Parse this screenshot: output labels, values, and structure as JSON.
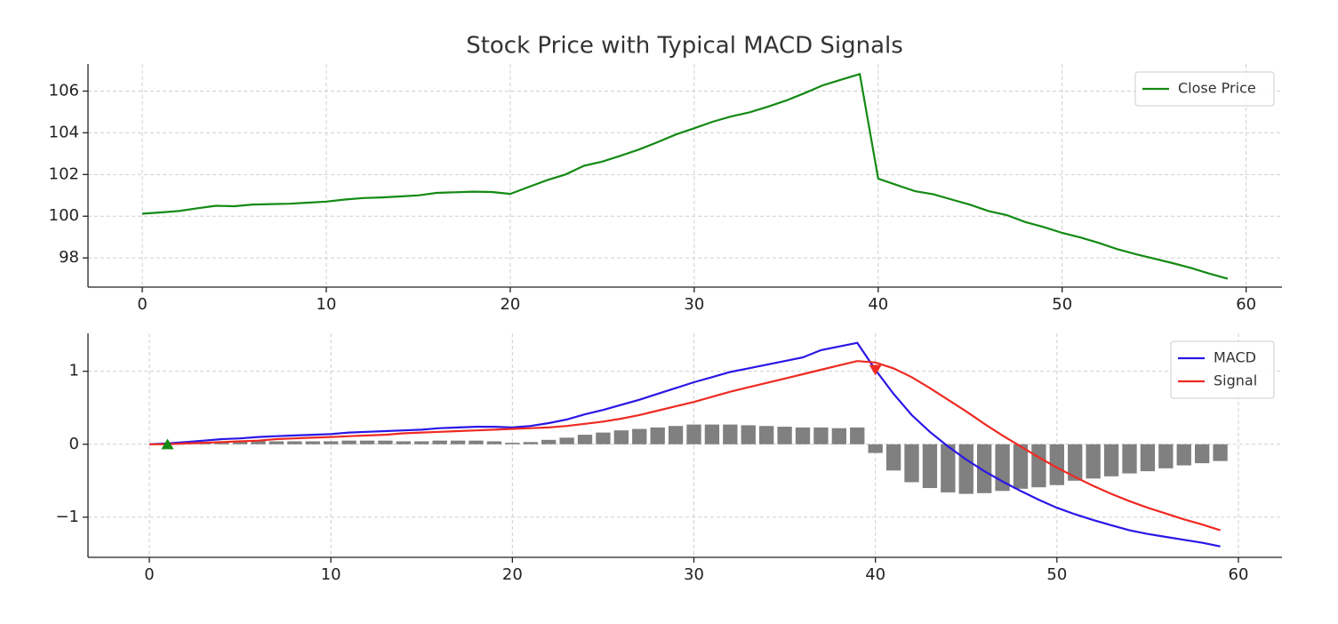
{
  "chart_data": [
    {
      "type": "line",
      "title": "Stock Price with Typical MACD Signals",
      "x": [
        0,
        1,
        2,
        3,
        4,
        5,
        6,
        7,
        8,
        9,
        10,
        11,
        12,
        13,
        14,
        15,
        16,
        17,
        18,
        19,
        20,
        21,
        22,
        23,
        24,
        25,
        26,
        27,
        28,
        29,
        30,
        31,
        32,
        33,
        34,
        35,
        36,
        37,
        38,
        39,
        40,
        41,
        42,
        43,
        44,
        45,
        46,
        47,
        48,
        49,
        50,
        51,
        52,
        53,
        54,
        55,
        56,
        57,
        58,
        59
      ],
      "series": [
        {
          "name": "Close Price",
          "color": "#138a13",
          "values": [
            100.12,
            100.18,
            100.25,
            100.38,
            100.5,
            100.48,
            100.56,
            100.58,
            100.6,
            100.65,
            100.7,
            100.8,
            100.87,
            100.9,
            100.95,
            101.0,
            101.12,
            101.15,
            101.18,
            101.16,
            101.07,
            101.4,
            101.73,
            102.0,
            102.42,
            102.62,
            102.9,
            103.2,
            103.55,
            103.92,
            104.22,
            104.53,
            104.78,
            104.98,
            105.25,
            105.55,
            105.9,
            106.28,
            106.55,
            106.82,
            101.8,
            101.5,
            101.2,
            101.05,
            100.8,
            100.55,
            100.25,
            100.05,
            99.72,
            99.48,
            99.2,
            98.98,
            98.72,
            98.42,
            98.18,
            97.97,
            97.75,
            97.52,
            97.25,
            97.0
          ]
        }
      ],
      "xlim": [
        -2.95,
        61.95
      ],
      "ylim": [
        96.6,
        107.3
      ],
      "xticks": [
        0,
        10,
        20,
        30,
        40,
        50,
        60
      ],
      "yticks": [
        98,
        100,
        102,
        104,
        106
      ],
      "grid": true,
      "legend": "upper right"
    },
    {
      "type": "combo",
      "x": [
        0,
        1,
        2,
        3,
        4,
        5,
        6,
        7,
        8,
        9,
        10,
        11,
        12,
        13,
        14,
        15,
        16,
        17,
        18,
        19,
        20,
        21,
        22,
        23,
        24,
        25,
        26,
        27,
        28,
        29,
        30,
        31,
        32,
        33,
        34,
        35,
        36,
        37,
        38,
        39,
        40,
        41,
        42,
        43,
        44,
        45,
        46,
        47,
        48,
        49,
        50,
        51,
        52,
        53,
        54,
        55,
        56,
        57,
        58,
        59
      ],
      "series": [
        {
          "name": "MACD",
          "type": "line",
          "color": "#2a16e6",
          "values": [
            0,
            0.01,
            0.03,
            0.05,
            0.07,
            0.08,
            0.1,
            0.11,
            0.12,
            0.13,
            0.14,
            0.16,
            0.17,
            0.18,
            0.19,
            0.2,
            0.22,
            0.23,
            0.24,
            0.24,
            0.23,
            0.25,
            0.29,
            0.34,
            0.41,
            0.47,
            0.54,
            0.61,
            0.69,
            0.77,
            0.85,
            0.92,
            0.99,
            1.04,
            1.09,
            1.14,
            1.19,
            1.29,
            1.34,
            1.39,
            1.02,
            0.69,
            0.4,
            0.17,
            -0.03,
            -0.21,
            -0.37,
            -0.51,
            -0.64,
            -0.76,
            -0.87,
            -0.96,
            -1.04,
            -1.11,
            -1.18,
            -1.23,
            -1.27,
            -1.31,
            -1.35,
            -1.4
          ]
        },
        {
          "name": "Signal",
          "type": "line",
          "color": "#ee2a22",
          "values": [
            0,
            0,
            0.01,
            0.02,
            0.03,
            0.04,
            0.05,
            0.07,
            0.08,
            0.09,
            0.1,
            0.11,
            0.12,
            0.13,
            0.15,
            0.16,
            0.17,
            0.18,
            0.19,
            0.2,
            0.21,
            0.22,
            0.23,
            0.25,
            0.28,
            0.31,
            0.35,
            0.4,
            0.46,
            0.52,
            0.58,
            0.65,
            0.72,
            0.78,
            0.84,
            0.9,
            0.96,
            1.02,
            1.08,
            1.14,
            1.12,
            1.04,
            0.92,
            0.77,
            0.61,
            0.45,
            0.28,
            0.12,
            -0.03,
            -0.18,
            -0.32,
            -0.45,
            -0.57,
            -0.68,
            -0.78,
            -0.87,
            -0.95,
            -1.03,
            -1.1,
            -1.18
          ]
        },
        {
          "type": "bar",
          "color": "#808080",
          "values": [
            0,
            0.01,
            0.02,
            0.03,
            0.04,
            0.04,
            0.05,
            0.04,
            0.04,
            0.04,
            0.04,
            0.05,
            0.05,
            0.05,
            0.04,
            0.04,
            0.05,
            0.05,
            0.05,
            0.04,
            0.02,
            0.03,
            0.06,
            0.09,
            0.13,
            0.16,
            0.19,
            0.21,
            0.23,
            0.25,
            0.27,
            0.27,
            0.27,
            0.26,
            0.25,
            0.24,
            0.23,
            0.23,
            0.22,
            0.23,
            -0.12,
            -0.36,
            -0.52,
            -0.6,
            -0.66,
            -0.68,
            -0.67,
            -0.64,
            -0.61,
            -0.59,
            -0.56,
            -0.5,
            -0.47,
            -0.44,
            -0.4,
            -0.37,
            -0.33,
            -0.29,
            -0.26,
            -0.23
          ]
        }
      ],
      "markers": [
        {
          "shape": "triangle-up",
          "color": "#138a13",
          "x": [
            1
          ],
          "y": [
            0
          ]
        },
        {
          "shape": "triangle-down",
          "color": "#ee2a22",
          "x": [
            40
          ],
          "y": [
            1.02
          ]
        }
      ],
      "xlim": [
        -3.38,
        62.4
      ],
      "ylim": [
        -1.55,
        1.52
      ],
      "xticks": [
        0,
        10,
        20,
        30,
        40,
        50,
        60
      ],
      "yticks": [
        {
          "value": -1,
          "label": "−1"
        },
        0,
        1
      ],
      "grid": true,
      "legend": "upper right"
    }
  ]
}
